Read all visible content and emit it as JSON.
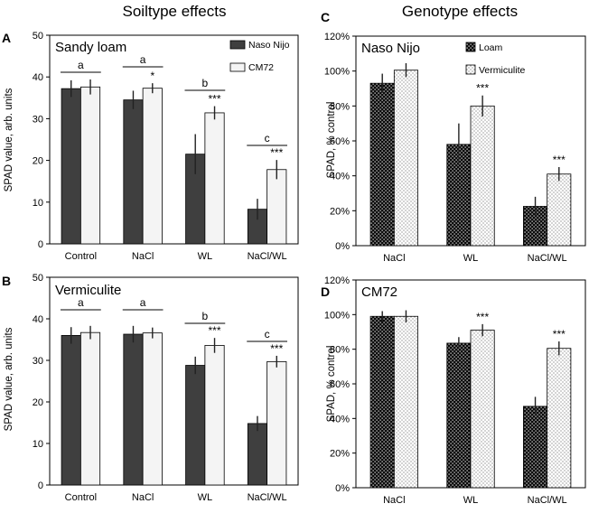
{
  "headers": {
    "left": "Soiltype effects",
    "right": "Genotype effects"
  },
  "colors": {
    "dark": "#3f3f3f",
    "light": "#f4f4f4",
    "error": "#222222",
    "border": "#000000"
  },
  "chart_data": [
    {
      "panel": "A",
      "type": "bar",
      "title": "Sandy loam",
      "ylabel": "SPAD value, arb. units",
      "ylim": [
        0,
        50
      ],
      "yticks": [
        "0",
        "10",
        "20",
        "30",
        "40",
        "50"
      ],
      "categories": [
        "Control",
        "NaCl",
        "WL",
        "NaCl/WL"
      ],
      "series": [
        {
          "name": "Naso Nijo",
          "style": "dark",
          "values": [
            37.2,
            34.5,
            21.5,
            8.3
          ],
          "errors": [
            2.0,
            2.2,
            4.8,
            2.5
          ],
          "marks": [
            "",
            "",
            "",
            ""
          ]
        },
        {
          "name": "CM72",
          "style": "light",
          "values": [
            37.6,
            37.3,
            31.4,
            17.8
          ],
          "errors": [
            1.8,
            1.2,
            1.6,
            2.3
          ],
          "marks": [
            "",
            "*",
            "***",
            "***"
          ]
        }
      ],
      "groups": [
        "a",
        "a",
        "b",
        "c"
      ],
      "legend": [
        "Naso Nijo",
        "CM72"
      ]
    },
    {
      "panel": "B",
      "type": "bar",
      "title": "Vermiculite",
      "ylabel": "SPAD value, arb. units",
      "ylim": [
        0,
        50
      ],
      "yticks": [
        "0",
        "10",
        "20",
        "30",
        "40",
        "50"
      ],
      "categories": [
        "Control",
        "NaCl",
        "WL",
        "NaCl/WL"
      ],
      "series": [
        {
          "name": "Naso Nijo",
          "style": "dark",
          "values": [
            36.0,
            36.3,
            28.8,
            14.8
          ],
          "errors": [
            2.0,
            2.0,
            2.1,
            1.8
          ],
          "marks": [
            "",
            "",
            "",
            ""
          ]
        },
        {
          "name": "CM72",
          "style": "light",
          "values": [
            36.7,
            36.6,
            33.6,
            29.7
          ],
          "errors": [
            1.6,
            1.3,
            1.8,
            1.4
          ],
          "marks": [
            "",
            "",
            "***",
            "***"
          ]
        }
      ],
      "groups": [
        "a",
        "a",
        "b",
        "c"
      ],
      "legend": []
    },
    {
      "panel": "C",
      "type": "bar",
      "title": "Naso Nijo",
      "ylabel": "SPAD, % control",
      "ylim": [
        0,
        120
      ],
      "yticks": [
        "0%",
        "20%",
        "40%",
        "60%",
        "80%",
        "100%",
        "120%"
      ],
      "categories": [
        "NaCl",
        "WL",
        "NaCl/WL"
      ],
      "series": [
        {
          "name": "Loam",
          "style": "dotted-dark",
          "values": [
            93,
            58,
            22.5
          ],
          "errors": [
            5.5,
            12,
            5.5
          ],
          "marks": [
            "",
            "",
            ""
          ]
        },
        {
          "name": "Vermiculite",
          "style": "dotted-light",
          "values": [
            100.5,
            80,
            41
          ],
          "errors": [
            4,
            6,
            4
          ],
          "marks": [
            "",
            "***",
            "***"
          ]
        }
      ],
      "groups": [],
      "legend": [
        "Loam",
        "Vermiculite"
      ]
    },
    {
      "panel": "D",
      "type": "bar",
      "title": "CM72",
      "ylabel": "SPAD, % control",
      "ylim": [
        0,
        120
      ],
      "yticks": [
        "0%",
        "20%",
        "40%",
        "60%",
        "80%",
        "100%",
        "120%"
      ],
      "categories": [
        "NaCl",
        "WL",
        "NaCl/WL"
      ],
      "series": [
        {
          "name": "Loam",
          "style": "dotted-dark",
          "values": [
            99,
            83.5,
            47
          ],
          "errors": [
            3,
            3.5,
            5.5
          ],
          "marks": [
            "",
            "",
            ""
          ]
        },
        {
          "name": "Vermiculite",
          "style": "dotted-light",
          "values": [
            99,
            91,
            80.5
          ],
          "errors": [
            3.5,
            3.5,
            4
          ],
          "marks": [
            "",
            "***",
            "***"
          ]
        }
      ],
      "groups": [],
      "legend": []
    }
  ]
}
